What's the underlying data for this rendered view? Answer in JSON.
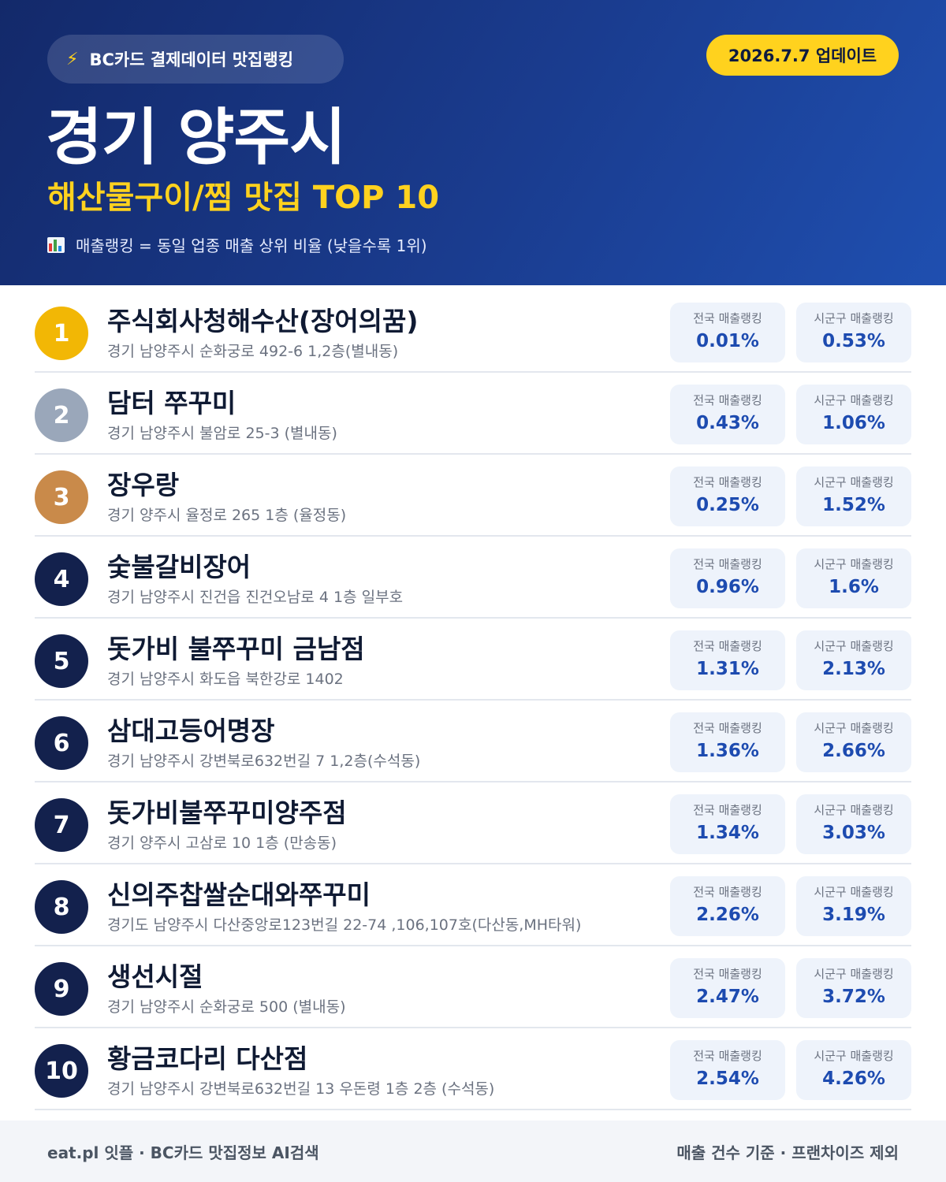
{
  "header": {
    "brand_pill": "BC카드 결제데이터 맛집랭킹",
    "bolt_icon": "lightning-bolt-icon",
    "update_badge": "2026.7.7 업데이트",
    "title": "경기 양주시",
    "subtitle": "해산물구이/찜 맛집 TOP 10",
    "note": "매출랭킹 = 동일 업종 매출 상위 비율 (낮을수록 1위)"
  },
  "labels": {
    "national": "전국 매출랭킹",
    "local": "시군구 매출랭킹"
  },
  "restaurants": [
    {
      "rank": "1",
      "name": "주식회사청해수산(장어의꿈)",
      "address": "경기 남양주시 순화궁로 492-6 1,2층(별내동)",
      "national": "0.01%",
      "local": "0.53%"
    },
    {
      "rank": "2",
      "name": "담터 쭈꾸미",
      "address": "경기 남양주시 불암로 25-3 (별내동)",
      "national": "0.43%",
      "local": "1.06%"
    },
    {
      "rank": "3",
      "name": "장우랑",
      "address": "경기 양주시 율정로 265 1층 (율정동)",
      "national": "0.25%",
      "local": "1.52%"
    },
    {
      "rank": "4",
      "name": "숯불갈비장어",
      "address": "경기 남양주시 진건읍 진건오남로 4 1층 일부호",
      "national": "0.96%",
      "local": "1.6%"
    },
    {
      "rank": "5",
      "name": "돗가비 불쭈꾸미 금남점",
      "address": "경기 남양주시 화도읍 북한강로 1402",
      "national": "1.31%",
      "local": "2.13%"
    },
    {
      "rank": "6",
      "name": "삼대고등어명장",
      "address": "경기 남양주시 강변북로632번길 7 1,2층(수석동)",
      "national": "1.36%",
      "local": "2.66%"
    },
    {
      "rank": "7",
      "name": "돗가비불쭈꾸미양주점",
      "address": "경기 양주시 고삼로 10 1층 (만송동)",
      "national": "1.34%",
      "local": "3.03%"
    },
    {
      "rank": "8",
      "name": "신의주찹쌀순대와쭈꾸미",
      "address": "경기도 남양주시 다산중앙로123번길 22-74 ,106,107호(다산동,MH타워)",
      "national": "2.26%",
      "local": "3.19%"
    },
    {
      "rank": "9",
      "name": "생선시절",
      "address": "경기 남양주시 순화궁로 500 (별내동)",
      "national": "2.47%",
      "local": "3.72%"
    },
    {
      "rank": "10",
      "name": "황금코다리 다산점",
      "address": "경기 남양주시 강변북로632번길 13 우돈령 1층 2층 (수석동)",
      "national": "2.54%",
      "local": "4.26%"
    }
  ],
  "footer": {
    "left": "eat.pl 잇플 · BC카드 맛집정보 AI검색",
    "right": "매출 건수 기준 · 프랜차이즈 제외"
  },
  "colors": {
    "header_start": "#13296a",
    "header_end": "#1f4fb0",
    "accent_yellow": "#ffd21e",
    "gold": "#f2b705",
    "silver": "#9aa7ba",
    "bronze": "#c98a4a",
    "rank_default": "#13214d",
    "value_blue": "#1d4bb0"
  }
}
